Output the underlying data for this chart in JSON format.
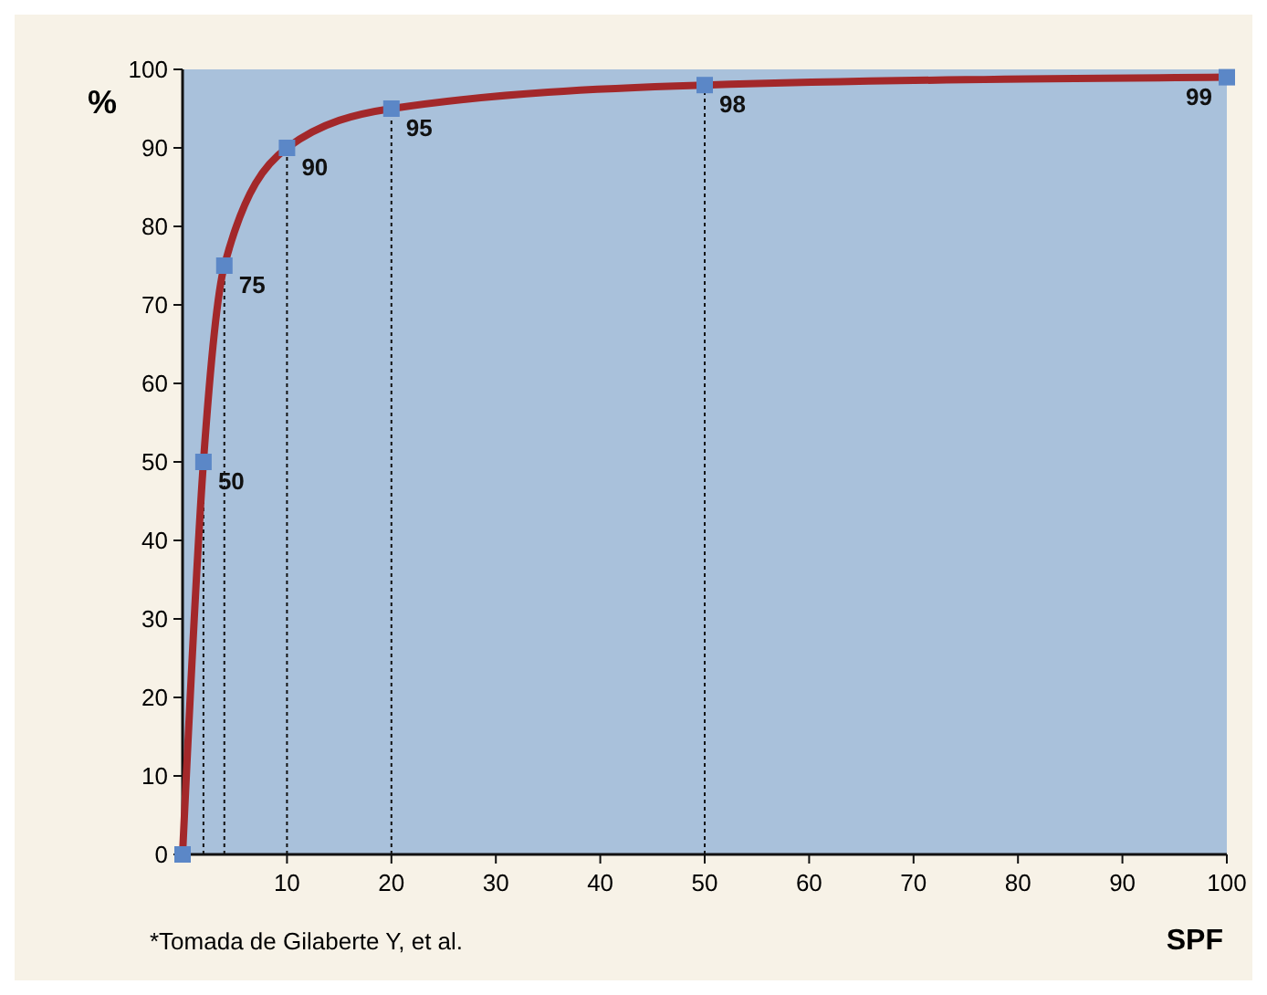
{
  "chart_data": {
    "type": "line",
    "xlabel": "SPF",
    "ylabel": "%",
    "x": [
      0,
      2,
      4,
      10,
      20,
      50,
      100
    ],
    "series": [
      {
        "color": "#a3282a",
        "values": [
          0,
          50,
          75,
          90,
          95,
          98,
          99
        ],
        "value_labels": [
          null,
          "50",
          "75",
          "90",
          "95",
          "98",
          "99"
        ]
      }
    ],
    "xlim": [
      0,
      100
    ],
    "xticks": [
      10,
      20,
      30,
      40,
      50,
      60,
      70,
      80,
      90,
      100
    ],
    "ylim": [
      0,
      100
    ],
    "yticks": [
      0,
      10,
      20,
      30,
      40,
      50,
      60,
      70,
      80,
      90,
      100
    ],
    "grid": false,
    "marker": "square",
    "line_style": "solid",
    "ref_lines": [
      {
        "axis": "x",
        "value": 2,
        "line_style": "dotted"
      },
      {
        "axis": "x",
        "value": 4,
        "line_style": "dotted"
      },
      {
        "axis": "x",
        "value": 10,
        "line_style": "dotted"
      },
      {
        "axis": "x",
        "value": 20,
        "line_style": "dotted"
      },
      {
        "axis": "x",
        "value": 50,
        "line_style": "dotted"
      }
    ],
    "annotations": [
      "*Tomada de Gilaberte Y, et al."
    ]
  }
}
